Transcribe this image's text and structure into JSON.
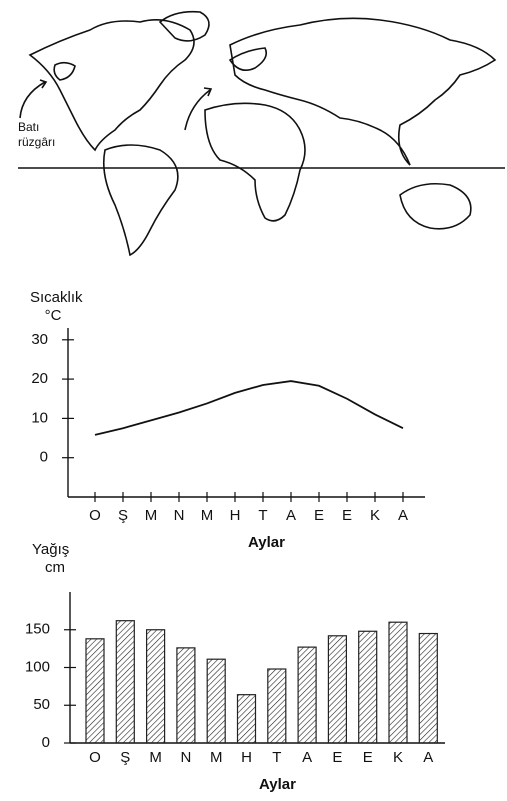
{
  "map": {
    "wind_label": [
      "Batı",
      "rüzgârı"
    ]
  },
  "chart_data": [
    {
      "type": "line",
      "y_label": "Sıcaklık",
      "y_unit": "°C",
      "x_label": "Aylar",
      "categories": [
        "O",
        "Ş",
        "M",
        "N",
        "M",
        "H",
        "T",
        "A",
        "E",
        "E",
        "K",
        "A"
      ],
      "values": [
        5.8,
        7.5,
        9.5,
        11.5,
        13.8,
        16.5,
        18.5,
        19.5,
        18.3,
        15,
        11,
        7.5
      ],
      "color": "#111",
      "ylim": [
        -10,
        33
      ],
      "yticks": [
        0,
        10,
        20,
        30
      ]
    },
    {
      "type": "bar",
      "y_label": "Yağış",
      "y_unit": "cm",
      "x_label": "Aylar",
      "categories": [
        "O",
        "Ş",
        "M",
        "N",
        "M",
        "H",
        "T",
        "A",
        "E",
        "E",
        "K",
        "A"
      ],
      "values": [
        138,
        162,
        150,
        126,
        111,
        64,
        98,
        127,
        142,
        148,
        160,
        145
      ],
      "color": "#222",
      "ylim": [
        0,
        200
      ],
      "yticks": [
        0,
        50,
        100,
        150
      ]
    }
  ]
}
